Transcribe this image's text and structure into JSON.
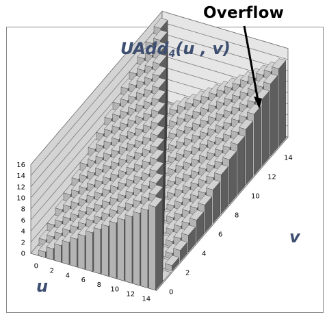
{
  "annotation": {
    "text": "Overflow"
  },
  "chart_data": {
    "type": "3d-bar",
    "title": {
      "prefix": "UAdd",
      "subscript": "4",
      "suffix": "(u , v)"
    },
    "xlabel": "u",
    "ylabel": "v",
    "zlim": [
      0,
      16
    ],
    "z_ticks": [
      0,
      2,
      4,
      6,
      8,
      10,
      12,
      14,
      16
    ],
    "u_ticks": [
      0,
      2,
      4,
      6,
      8,
      10,
      12,
      14
    ],
    "v_ticks": [
      0,
      2,
      4,
      6,
      8,
      10,
      12,
      14
    ],
    "u_values": [
      0,
      1,
      2,
      3,
      4,
      5,
      6,
      7,
      8,
      9,
      10,
      11,
      12,
      13,
      14,
      15
    ],
    "v_values": [
      0,
      1,
      2,
      3,
      4,
      5,
      6,
      7,
      8,
      9,
      10,
      11,
      12,
      13,
      14,
      15
    ],
    "function": "(u + v) mod 16",
    "grid": true,
    "colors": {
      "bar_front": "#b4b4b4",
      "bar_side": "#5e5e5e",
      "bar_top": "#d2d2d2",
      "back_wall": "#e6e6e6",
      "side_wall": "#d4d4d4",
      "grid": "#7a7a7a"
    }
  }
}
